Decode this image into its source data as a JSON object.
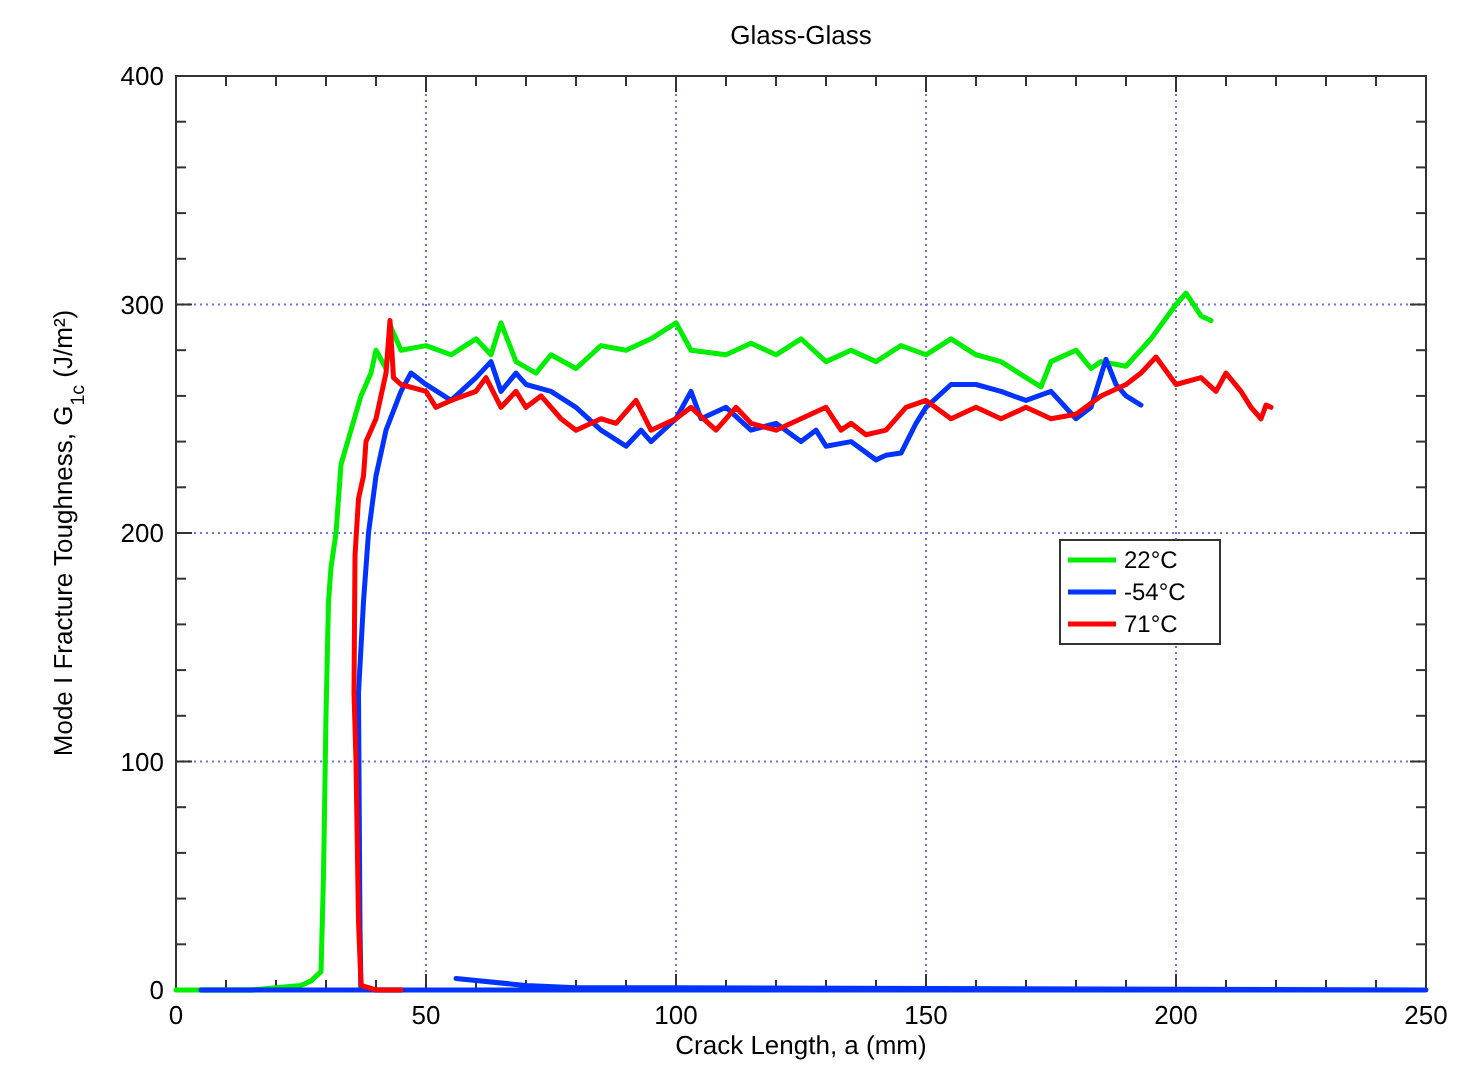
{
  "chart_data": {
    "type": "line",
    "title": "Glass-Glass",
    "xlabel": "Crack Length, a (mm)",
    "ylabel": "Mode I Fracture Toughness, G$_{1c}$ (J/m²)",
    "xlim": [
      0,
      250
    ],
    "ylim": [
      0,
      400
    ],
    "xticks": [
      0,
      {
        "value": 10,
        "label": null
      },
      {
        "value": 20,
        "label": null
      },
      {
        "value": 30,
        "label": null
      },
      {
        "value": 40,
        "label": null
      },
      50,
      {
        "value": 60,
        "label": null
      },
      {
        "value": 70,
        "label": null
      },
      {
        "value": 80,
        "label": null
      },
      {
        "value": 90,
        "label": null
      },
      100,
      {
        "value": 110,
        "label": null
      },
      {
        "value": 120,
        "label": null
      },
      {
        "value": 130,
        "label": null
      },
      {
        "value": 140,
        "label": null
      },
      150,
      {
        "value": 160,
        "label": null
      },
      {
        "value": 170,
        "label": null
      },
      {
        "value": 180,
        "label": null
      },
      {
        "value": 190,
        "label": null
      },
      200,
      {
        "value": 210,
        "label": null
      },
      {
        "value": 220,
        "label": null
      },
      {
        "value": 230,
        "label": null
      },
      {
        "value": 240,
        "label": null
      },
      250
    ],
    "yticks": [
      0,
      {
        "value": 20,
        "label": null
      },
      {
        "value": 40,
        "label": null
      },
      {
        "value": 60,
        "label": null
      },
      {
        "value": 80,
        "label": null
      },
      100,
      {
        "value": 120,
        "label": null
      },
      {
        "value": 140,
        "label": null
      },
      {
        "value": 160,
        "label": null
      },
      {
        "value": 180,
        "label": null
      },
      200,
      {
        "value": 220,
        "label": null
      },
      {
        "value": 240,
        "label": null
      },
      {
        "value": 260,
        "label": null
      },
      {
        "value": 280,
        "label": null
      },
      300,
      {
        "value": 320,
        "label": null
      },
      {
        "value": 340,
        "label": null
      },
      {
        "value": 360,
        "label": null
      },
      {
        "value": 380,
        "label": null
      },
      400
    ],
    "grid": true,
    "legend": "center right",
    "marker": "none",
    "line_style": "solid",
    "series": [
      {
        "name": "22°C",
        "color": "#00ee00",
        "x": [
          0,
          5,
          15,
          20,
          25,
          27,
          29,
          29.5,
          30,
          30.5,
          31,
          32,
          33,
          35,
          37,
          39,
          40,
          42,
          43,
          45,
          50,
          55,
          60,
          63,
          65,
          68,
          72,
          75,
          80,
          85,
          90,
          95,
          100,
          103,
          110,
          115,
          120,
          125,
          130,
          135,
          140,
          145,
          150,
          155,
          160,
          165,
          170,
          173,
          175,
          180,
          183,
          185,
          190,
          195,
          200,
          202,
          205,
          207
        ],
        "values": [
          0,
          0,
          0,
          1,
          2,
          4,
          8,
          50,
          120,
          170,
          185,
          200,
          230,
          245,
          260,
          270,
          280,
          272,
          290,
          280,
          282,
          278,
          285,
          278,
          292,
          275,
          270,
          278,
          272,
          282,
          280,
          285,
          292,
          280,
          278,
          283,
          278,
          285,
          275,
          280,
          275,
          282,
          278,
          285,
          278,
          275,
          268,
          264,
          275,
          280,
          272,
          275,
          273,
          285,
          300,
          305,
          295,
          293
        ]
      },
      {
        "name": "-54°C",
        "color": "#0033ff",
        "x": [
          56,
          70,
          80,
          100,
          250,
          5,
          20,
          36,
          37,
          36.8,
          36.5,
          37.5,
          38.5,
          40,
          42,
          45,
          47,
          50,
          55,
          60,
          63,
          65,
          68,
          70,
          75,
          80,
          85,
          90,
          93,
          95,
          100,
          103,
          105,
          110,
          115,
          120,
          125,
          128,
          130,
          135,
          140,
          142,
          145,
          148,
          150,
          155,
          160,
          165,
          170,
          175,
          180,
          183,
          186,
          188,
          190,
          193
        ],
        "values": [
          5,
          2,
          1,
          1,
          0,
          0,
          0,
          0,
          0,
          27,
          130,
          170,
          200,
          225,
          245,
          262,
          270,
          265,
          258,
          268,
          275,
          262,
          270,
          265,
          262,
          255,
          245,
          238,
          245,
          240,
          250,
          262,
          250,
          255,
          245,
          248,
          240,
          245,
          238,
          240,
          232,
          234,
          235,
          248,
          255,
          265,
          265,
          262,
          258,
          262,
          250,
          255,
          276,
          265,
          260,
          256
        ]
      },
      {
        "name": "71°C",
        "color": "#ff0000",
        "x": [
          45,
          40,
          37,
          36.5,
          36,
          35.6,
          35.8,
          36.5,
          37.5,
          38,
          39,
          40,
          41,
          42,
          42.8,
          43.5,
          45,
          50,
          52,
          55,
          60,
          62,
          65,
          68,
          70,
          73,
          77,
          80,
          85,
          88,
          92,
          95,
          100,
          103,
          108,
          112,
          115,
          120,
          125,
          130,
          133,
          135,
          138,
          142,
          146,
          150,
          155,
          160,
          165,
          170,
          175,
          180,
          185,
          190,
          193,
          196,
          200,
          205,
          208,
          210,
          213,
          215,
          217,
          218,
          219
        ],
        "values": [
          0,
          0,
          2,
          30,
          100,
          130,
          190,
          215,
          225,
          240,
          245,
          250,
          260,
          270,
          293,
          268,
          265,
          262,
          255,
          258,
          262,
          268,
          255,
          262,
          255,
          260,
          250,
          245,
          250,
          248,
          258,
          245,
          250,
          255,
          245,
          255,
          248,
          245,
          250,
          255,
          245,
          248,
          243,
          245,
          255,
          258,
          250,
          255,
          250,
          255,
          250,
          252,
          260,
          265,
          270,
          277,
          265,
          268,
          262,
          270,
          262,
          255,
          250,
          256,
          255
        ]
      }
    ]
  }
}
